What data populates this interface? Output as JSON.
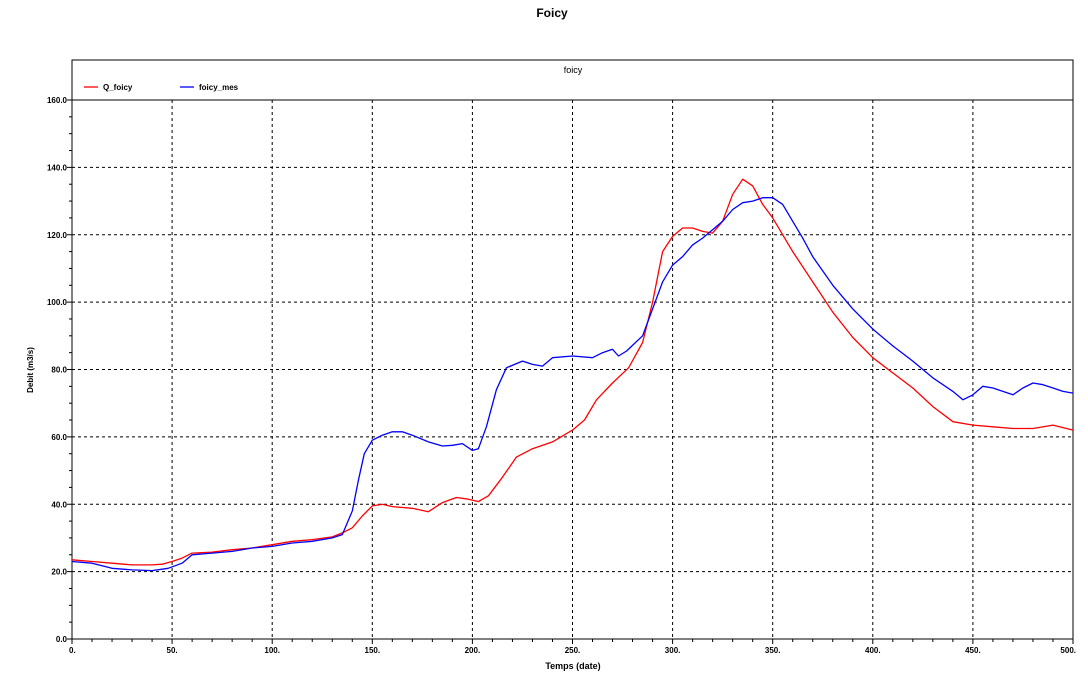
{
  "chart_data": {
    "type": "line",
    "title": "Foicy",
    "legend_title": "foicy",
    "xlabel": "Temps (date)",
    "ylabel": "Debit (m3/s)",
    "xlim": [
      0,
      500
    ],
    "ylim": [
      0,
      160
    ],
    "x_ticks": [
      0,
      50,
      100,
      150,
      200,
      250,
      300,
      350,
      400,
      450,
      500
    ],
    "x_tick_labels": [
      "0.",
      "50.",
      "100.",
      "150.",
      "200.",
      "250.",
      "300.",
      "350.",
      "400.",
      "450.",
      "500."
    ],
    "y_ticks": [
      0,
      20,
      40,
      60,
      80,
      100,
      120,
      140,
      160
    ],
    "y_tick_labels": [
      "0.0",
      "20.0",
      "40.0",
      "60.0",
      "80.0",
      "100.0",
      "120.0",
      "140.0",
      "160.0"
    ],
    "grid": true,
    "legend_position": "top-left",
    "series": [
      {
        "name": "Q_foicy",
        "color": "#ff0000",
        "points": [
          [
            0,
            23.5
          ],
          [
            10,
            23
          ],
          [
            20,
            22.5
          ],
          [
            30,
            22
          ],
          [
            40,
            22
          ],
          [
            45,
            22.2
          ],
          [
            50,
            23
          ],
          [
            55,
            24
          ],
          [
            60,
            25.5
          ],
          [
            70,
            25.8
          ],
          [
            80,
            26.5
          ],
          [
            90,
            27
          ],
          [
            100,
            28
          ],
          [
            110,
            29
          ],
          [
            120,
            29.5
          ],
          [
            130,
            30.3
          ],
          [
            135,
            31.5
          ],
          [
            140,
            33
          ],
          [
            145,
            36.5
          ],
          [
            150,
            39.5
          ],
          [
            155,
            40
          ],
          [
            160,
            39.3
          ],
          [
            170,
            38.8
          ],
          [
            178,
            37.8
          ],
          [
            185,
            40.5
          ],
          [
            192,
            42
          ],
          [
            198,
            41.5
          ],
          [
            203,
            40.8
          ],
          [
            208,
            42.5
          ],
          [
            215,
            48
          ],
          [
            222,
            54
          ],
          [
            230,
            56.5
          ],
          [
            240,
            58.5
          ],
          [
            250,
            62
          ],
          [
            256,
            65
          ],
          [
            262,
            71
          ],
          [
            270,
            76
          ],
          [
            278,
            80.5
          ],
          [
            285,
            88
          ],
          [
            290,
            100
          ],
          [
            295,
            115
          ],
          [
            300,
            119.5
          ],
          [
            305,
            122
          ],
          [
            310,
            122
          ],
          [
            315,
            121
          ],
          [
            320,
            120.5
          ],
          [
            325,
            124
          ],
          [
            330,
            132
          ],
          [
            335,
            136.5
          ],
          [
            340,
            134.5
          ],
          [
            345,
            129
          ],
          [
            350,
            125
          ],
          [
            360,
            115
          ],
          [
            370,
            106
          ],
          [
            380,
            97
          ],
          [
            390,
            89.5
          ],
          [
            400,
            83.5
          ],
          [
            410,
            79
          ],
          [
            420,
            74.5
          ],
          [
            430,
            69
          ],
          [
            440,
            64.5
          ],
          [
            450,
            63.5
          ],
          [
            460,
            63
          ],
          [
            470,
            62.5
          ],
          [
            480,
            62.5
          ],
          [
            490,
            63.5
          ],
          [
            500,
            62
          ]
        ]
      },
      {
        "name": "foicy_mes",
        "color": "#0000ff",
        "points": [
          [
            0,
            23
          ],
          [
            10,
            22.5
          ],
          [
            20,
            21
          ],
          [
            30,
            20.5
          ],
          [
            40,
            20.3
          ],
          [
            48,
            21
          ],
          [
            55,
            22.5
          ],
          [
            60,
            25
          ],
          [
            70,
            25.5
          ],
          [
            80,
            26
          ],
          [
            90,
            27
          ],
          [
            100,
            27.5
          ],
          [
            110,
            28.5
          ],
          [
            120,
            29
          ],
          [
            130,
            30
          ],
          [
            135,
            31
          ],
          [
            140,
            38
          ],
          [
            143,
            47
          ],
          [
            146,
            55
          ],
          [
            150,
            59
          ],
          [
            155,
            60.5
          ],
          [
            160,
            61.5
          ],
          [
            165,
            61.5
          ],
          [
            170,
            60.5
          ],
          [
            178,
            58.5
          ],
          [
            185,
            57.3
          ],
          [
            190,
            57.5
          ],
          [
            195,
            58
          ],
          [
            200,
            56
          ],
          [
            203,
            56.5
          ],
          [
            207,
            63
          ],
          [
            212,
            74
          ],
          [
            217,
            80.5
          ],
          [
            225,
            82.5
          ],
          [
            230,
            81.5
          ],
          [
            235,
            81
          ],
          [
            240,
            83.5
          ],
          [
            250,
            84
          ],
          [
            260,
            83.5
          ],
          [
            265,
            85
          ],
          [
            270,
            86
          ],
          [
            273,
            84
          ],
          [
            277,
            85.5
          ],
          [
            285,
            90
          ],
          [
            290,
            98
          ],
          [
            295,
            106
          ],
          [
            300,
            111
          ],
          [
            305,
            113.5
          ],
          [
            310,
            117
          ],
          [
            315,
            119
          ],
          [
            320,
            121.5
          ],
          [
            325,
            124
          ],
          [
            330,
            127.5
          ],
          [
            335,
            129.5
          ],
          [
            340,
            130
          ],
          [
            345,
            131
          ],
          [
            350,
            131
          ],
          [
            355,
            129
          ],
          [
            360,
            124
          ],
          [
            365,
            119
          ],
          [
            370,
            113.5
          ],
          [
            380,
            105
          ],
          [
            390,
            98
          ],
          [
            400,
            92
          ],
          [
            410,
            87
          ],
          [
            420,
            82.5
          ],
          [
            430,
            77.5
          ],
          [
            440,
            73.5
          ],
          [
            445,
            71
          ],
          [
            450,
            72.5
          ],
          [
            455,
            75
          ],
          [
            460,
            74.5
          ],
          [
            465,
            73.5
          ],
          [
            470,
            72.5
          ],
          [
            475,
            74.5
          ],
          [
            480,
            76
          ],
          [
            485,
            75.5
          ],
          [
            490,
            74.5
          ],
          [
            495,
            73.5
          ],
          [
            500,
            73
          ]
        ]
      }
    ]
  }
}
